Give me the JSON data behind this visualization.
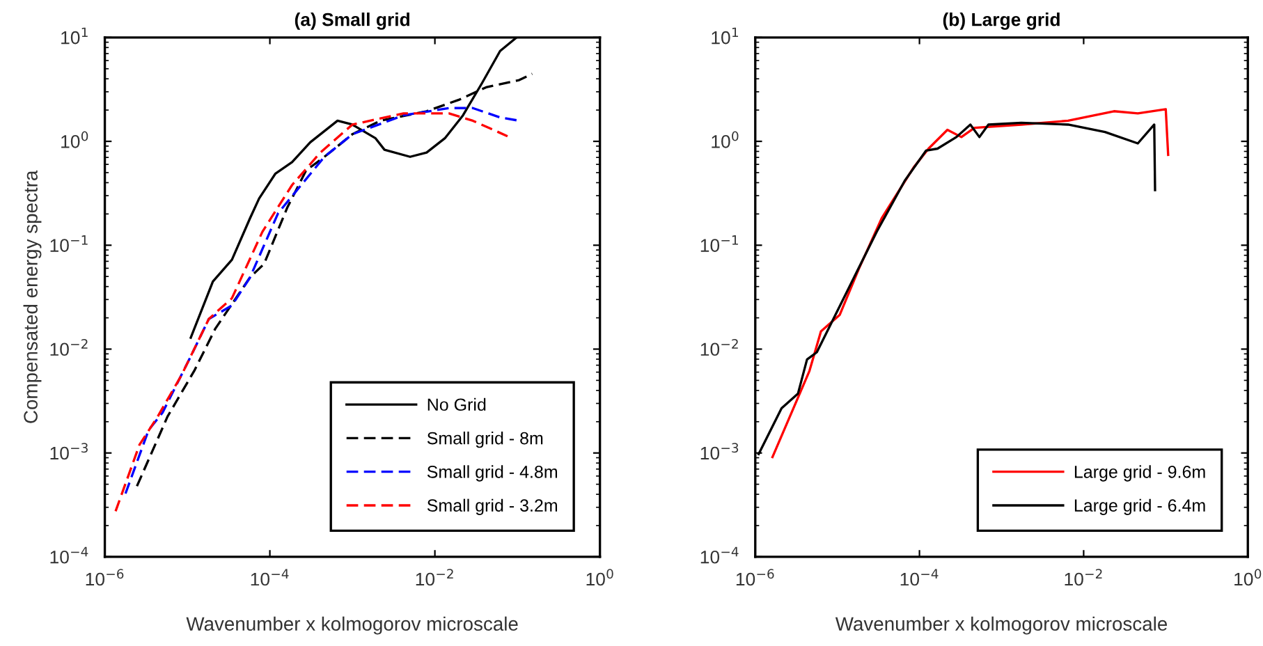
{
  "chart_data": [
    {
      "type": "line",
      "title": "(a) Small grid",
      "xlabel": "Wavenumber x kolmogorov microscale",
      "ylabel": "Compensated energy spectra",
      "log": "xy",
      "grid": false,
      "legend": "bottom right",
      "xlim": [
        1e-06,
        1
      ],
      "ylim": [
        0.0001,
        10
      ],
      "xticks": [
        {
          "value": 1e-06,
          "label": "10$^{−6}$"
        },
        {
          "value": 0.0001,
          "label": "10$^{−4}$"
        },
        {
          "value": 0.01,
          "label": "10$^{−2}$"
        },
        {
          "value": 1,
          "label": "10$^{0}$"
        }
      ],
      "yticks": [
        {
          "value": 0.0001,
          "label": "10$^{−4}$"
        },
        {
          "value": 0.001,
          "label": "10$^{−3}$"
        },
        {
          "value": 0.01,
          "label": "10$^{−2}$"
        },
        {
          "value": 0.1,
          "label": "10$^{−1}$"
        },
        {
          "value": 1,
          "label": "10$^{0}$"
        },
        {
          "value": 10,
          "label": "10$^{1}$"
        }
      ],
      "series": [
        {
          "name": "No Grid",
          "color": "#000000",
          "line_style": "solid",
          "x": [
            1.1e-05,
            2.04e-05,
            3.47e-05,
            5.75e-05,
            7.41e-05,
            0.000117,
            0.000186,
            0.000309,
            0.000661,
            0.001,
            0.00191,
            0.00245,
            0.00501,
            0.00794,
            0.0132,
            0.0219,
            0.0372,
            0.0617,
            0.0977
          ],
          "values": [
            0.0129,
            0.0447,
            0.0724,
            0.182,
            0.282,
            0.49,
            0.63,
            0.98,
            1.58,
            1.45,
            1.07,
            0.83,
            0.71,
            0.78,
            1.07,
            1.78,
            3.63,
            7.41,
            10
          ]
        },
        {
          "name": "Small grid - 8m",
          "color": "#000000",
          "line_style": "dashed",
          "x": [
            2.45e-06,
            5.75e-06,
            1.23e-05,
            2.19e-05,
            5.75e-05,
            8.51e-05,
            0.000162,
            0.000275,
            0.000457,
            0.001,
            0.00219,
            0.00794,
            0.0195,
            0.0417,
            0.105,
            0.151
          ],
          "values": [
            0.000479,
            0.00224,
            0.00631,
            0.0158,
            0.049,
            0.0661,
            0.229,
            0.525,
            0.708,
            1.17,
            1.58,
            1.95,
            2.51,
            3.31,
            3.89,
            4.47
          ]
        },
        {
          "name": "Small grid - 4.8m",
          "color": "#0000ff",
          "line_style": "dashed",
          "x": [
            1.78e-06,
            3.39e-06,
            5.01e-06,
            1.1e-05,
            1.82e-05,
            3.47e-05,
            5.75e-05,
            0.000126,
            0.00024,
            0.000457,
            0.001,
            0.00417,
            0.0148,
            0.0288,
            0.0617,
            0.105
          ],
          "values": [
            0.000407,
            0.00166,
            0.00245,
            0.00851,
            0.0195,
            0.0263,
            0.049,
            0.204,
            0.38,
            0.708,
            1.17,
            1.78,
            2.09,
            2.09,
            1.7,
            1.58
          ]
        },
        {
          "name": "Small grid - 3.2m",
          "color": "#ff0000",
          "line_style": "dashed",
          "x": [
            1.35e-06,
            2.63e-06,
            4.37e-06,
            8.51e-06,
            1.82e-05,
            3.47e-05,
            8.13e-05,
            0.000186,
            0.000407,
            0.001,
            0.00417,
            0.0148,
            0.0288,
            0.0479,
            0.0759
          ],
          "values": [
            0.000275,
            0.0012,
            0.00224,
            0.00562,
            0.0195,
            0.0309,
            0.135,
            0.38,
            0.776,
            1.45,
            1.86,
            1.86,
            1.58,
            1.32,
            1.12
          ]
        }
      ]
    },
    {
      "type": "line",
      "title": "(b) Large grid",
      "xlabel": "Wavenumber x kolmogorov microscale",
      "log": "xy",
      "grid": false,
      "legend": "bottom right",
      "xlim": [
        1e-06,
        1
      ],
      "ylim": [
        0.0001,
        10
      ],
      "xticks": [
        {
          "value": 1e-06,
          "label": "10$^{−6}$"
        },
        {
          "value": 0.0001,
          "label": "10$^{−4}$"
        },
        {
          "value": 0.01,
          "label": "10$^{−2}$"
        },
        {
          "value": 1,
          "label": "10$^{0}$"
        }
      ],
      "yticks": [
        {
          "value": 0.0001,
          "label": "10$^{−4}$"
        },
        {
          "value": 0.001,
          "label": "10$^{−3}$"
        },
        {
          "value": 0.01,
          "label": "10$^{−2}$"
        },
        {
          "value": 0.1,
          "label": "10$^{−1}$"
        },
        {
          "value": 1,
          "label": "10$^{0}$"
        },
        {
          "value": 10,
          "label": "10$^{1}$"
        }
      ],
      "series": [
        {
          "name": "Large grid - 9.6m",
          "color": "#ff0000",
          "line_style": "solid",
          "x": [
            1.62e-06,
            4.57e-06,
            6.31e-06,
            1.07e-05,
            1.82e-05,
            3.47e-05,
            4.47e-05,
            8.51e-05,
            0.000129,
            0.000219,
            0.000324,
            0.000468,
            0.00174,
            0.00646,
            0.0234,
            0.0457,
            0.1,
            0.107
          ],
          "values": [
            0.000912,
            0.00617,
            0.0148,
            0.0214,
            0.0589,
            0.182,
            0.251,
            0.562,
            0.851,
            1.29,
            1.1,
            1.35,
            1.45,
            1.58,
            1.95,
            1.86,
            2.04,
            0.741
          ]
        },
        {
          "name": "Large grid - 6.4m",
          "color": "#000000",
          "line_style": "solid",
          "x": [
            1.1e-06,
            2.09e-06,
            3.31e-06,
            4.27e-06,
            5.62e-06,
            1.38e-05,
            3.02e-05,
            6.61e-05,
            0.00012,
            0.000166,
            0.000282,
            0.000417,
            0.000537,
            0.000692,
            0.00174,
            0.00646,
            0.0182,
            0.0457,
            0.0724,
            0.0741
          ],
          "values": [
            0.000977,
            0.00269,
            0.00372,
            0.00794,
            0.00933,
            0.0389,
            0.135,
            0.417,
            0.813,
            0.851,
            1.1,
            1.45,
            1.1,
            1.45,
            1.51,
            1.45,
            1.23,
            0.955,
            1.45,
            0.339
          ]
        }
      ]
    }
  ]
}
